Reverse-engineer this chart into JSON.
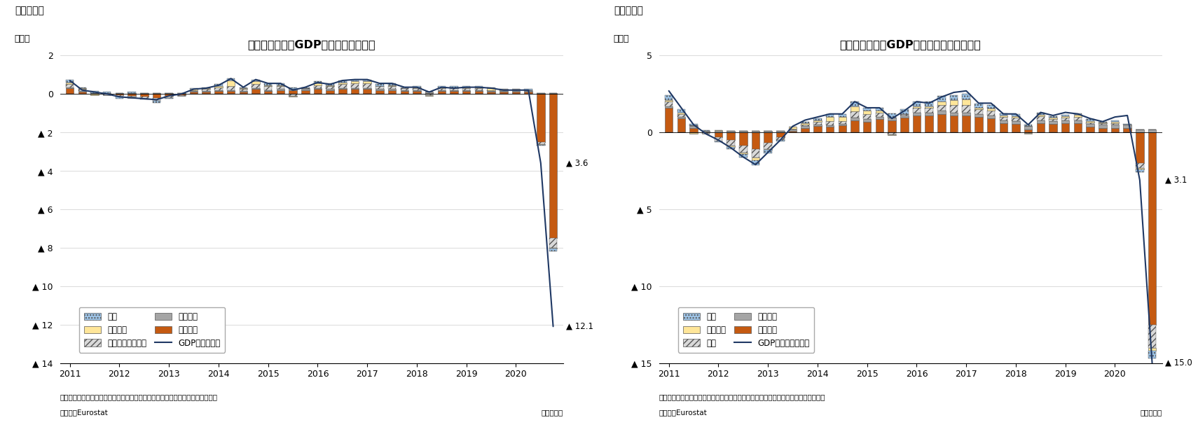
{
  "chart1": {
    "title": "ユーロ圈の実質GDP成長率（前期比）",
    "fig_label": "（図表１）",
    "ylabel": "（％）",
    "ylim": [
      -14,
      2
    ],
    "yticks": [
      2,
      0,
      -2,
      -4,
      -6,
      -8,
      -10,
      -12,
      -14
    ],
    "ytick_labels": [
      "2",
      "0",
      "▲ 2",
      "▲ 4",
      "▲ 6",
      "▲ 8",
      "▲ 10",
      "▲ 12",
      "▲ 14"
    ],
    "note": "（注）季節調整値、寄与度は前期比伸び率に対する寄与度で最新期のデータなし",
    "source": "（資料）Eurostat",
    "quarter_label": "（四半期）",
    "gdp_label_val": -3.6,
    "gdp_label_text": "▲ 3.6",
    "min_label_val": -12.1,
    "min_label_text": "▲ 12.1",
    "legend_labels": [
      "外需",
      "在庫変動",
      "投資（在庫除く）",
      "政府消費",
      "個人消費",
      "GDP（前期比）"
    ]
  },
  "chart2": {
    "title": "ユーロ圈の実質GDP成長率（前年同期比）",
    "fig_label": "（図表２）",
    "ylabel": "（％）",
    "ylim": [
      -15,
      5
    ],
    "yticks": [
      5,
      0,
      -5,
      -10,
      -15
    ],
    "ytick_labels": [
      "5",
      "0",
      "▲ 5",
      "▲ 10",
      "▲ 15"
    ],
    "note": "（注）季節調整値、寄与度は前年同期比伸び率に対する寄与度で最新期のデータなし",
    "source": "（資料）Eurostat",
    "quarter_label": "（四半期）",
    "gdp_label_val": -3.1,
    "gdp_label_text": "▲ 3.1",
    "min_label_val": -15.0,
    "min_label_text": "▲ 15.0",
    "legend_labels": [
      "外需",
      "在庫変動",
      "投資",
      "政府消費",
      "個人消費",
      "GDP（前年同期比）"
    ]
  },
  "colors": {
    "gaijyu": "#9dc3e6",
    "zaiko": "#ffe699",
    "toshi": "#d9d9d9",
    "seifu": "#a5a5a5",
    "kojin": "#c55a11",
    "gdp_line": "#1f3864"
  },
  "bar_width": 0.65,
  "chart1_data": {
    "gaijyu": [
      0.15,
      0.05,
      0.1,
      0.05,
      -0.1,
      0.05,
      -0.05,
      -0.1,
      -0.05,
      0.0,
      0.05,
      0.05,
      0.1,
      0.1,
      0.05,
      0.1,
      0.1,
      0.1,
      0.1,
      0.05,
      0.1,
      0.1,
      0.1,
      0.1,
      0.1,
      0.1,
      0.1,
      0.05,
      0.05,
      0.0,
      0.05,
      0.05,
      0.05,
      0.05,
      0.05,
      0.0,
      0.0,
      0.05,
      -0.05,
      -0.15
    ],
    "zaiko": [
      0.1,
      0.05,
      -0.05,
      0.0,
      0.0,
      -0.05,
      0.0,
      0.0,
      0.0,
      0.0,
      0.05,
      0.05,
      0.05,
      0.3,
      0.05,
      0.15,
      0.05,
      0.05,
      -0.05,
      0.0,
      0.1,
      0.05,
      0.1,
      0.1,
      0.1,
      0.0,
      0.05,
      0.0,
      0.05,
      -0.05,
      0.05,
      0.05,
      0.05,
      0.05,
      0.1,
      0.05,
      0.05,
      0.0,
      -0.05,
      -0.05
    ],
    "toshi": [
      0.15,
      0.1,
      0.0,
      -0.05,
      -0.1,
      -0.05,
      -0.1,
      -0.15,
      -0.1,
      -0.05,
      0.05,
      0.1,
      0.15,
      0.2,
      0.1,
      0.2,
      0.2,
      0.15,
      -0.1,
      0.05,
      0.15,
      0.15,
      0.2,
      0.25,
      0.25,
      0.15,
      0.15,
      0.1,
      0.1,
      -0.05,
      0.1,
      0.1,
      0.1,
      0.1,
      0.05,
      0.05,
      0.05,
      0.05,
      -0.1,
      -0.5
    ],
    "seifu": [
      0.05,
      0.05,
      0.05,
      0.05,
      0.05,
      0.05,
      0.05,
      0.05,
      0.05,
      0.05,
      0.05,
      0.05,
      0.05,
      0.05,
      0.05,
      0.05,
      0.05,
      0.05,
      0.05,
      0.05,
      0.05,
      0.05,
      0.05,
      0.05,
      0.05,
      0.05,
      0.05,
      0.05,
      0.05,
      0.05,
      0.05,
      0.05,
      0.05,
      0.05,
      0.05,
      0.05,
      0.05,
      0.05,
      0.05,
      0.05
    ],
    "kojin": [
      0.3,
      0.1,
      0.0,
      0.0,
      -0.05,
      -0.1,
      -0.15,
      -0.2,
      -0.1,
      -0.05,
      0.1,
      0.1,
      0.15,
      0.15,
      0.1,
      0.25,
      0.15,
      0.2,
      0.2,
      0.2,
      0.25,
      0.2,
      0.25,
      0.25,
      0.25,
      0.2,
      0.2,
      0.15,
      0.15,
      0.05,
      0.15,
      0.15,
      0.15,
      0.15,
      0.1,
      0.1,
      0.1,
      0.1,
      -2.5,
      -7.5
    ],
    "gdp_line": [
      0.7,
      0.2,
      0.1,
      0.0,
      -0.15,
      -0.2,
      -0.25,
      -0.3,
      -0.1,
      0.0,
      0.25,
      0.3,
      0.45,
      0.8,
      0.35,
      0.75,
      0.55,
      0.55,
      0.2,
      0.35,
      0.6,
      0.5,
      0.7,
      0.75,
      0.75,
      0.55,
      0.55,
      0.35,
      0.35,
      0.1,
      0.35,
      0.3,
      0.35,
      0.35,
      0.3,
      0.2,
      0.2,
      0.2,
      -3.6,
      -12.1
    ]
  },
  "chart2_data": {
    "gaijyu": [
      0.3,
      0.2,
      0.1,
      0.05,
      -0.05,
      -0.15,
      -0.25,
      -0.35,
      -0.2,
      -0.1,
      0.0,
      0.1,
      0.1,
      0.2,
      0.2,
      0.3,
      0.2,
      0.2,
      0.3,
      0.3,
      0.3,
      0.3,
      0.35,
      0.3,
      0.35,
      0.25,
      0.25,
      0.15,
      0.15,
      0.1,
      0.15,
      0.1,
      0.1,
      0.1,
      0.1,
      0.05,
      0.1,
      0.05,
      -0.2,
      -0.5
    ],
    "zaiko": [
      0.1,
      0.1,
      -0.1,
      0.0,
      0.05,
      -0.1,
      -0.1,
      -0.15,
      -0.05,
      0.0,
      0.1,
      0.1,
      0.1,
      0.25,
      0.25,
      0.35,
      0.2,
      0.1,
      -0.05,
      0.0,
      0.1,
      0.1,
      0.2,
      0.3,
      0.35,
      0.1,
      0.15,
      0.1,
      0.1,
      -0.05,
      0.1,
      0.1,
      0.1,
      0.15,
      0.1,
      0.05,
      0.1,
      0.0,
      -0.1,
      -0.2
    ],
    "toshi": [
      0.3,
      0.2,
      0.05,
      -0.1,
      -0.3,
      -0.35,
      -0.45,
      -0.55,
      -0.4,
      -0.2,
      0.05,
      0.1,
      0.2,
      0.3,
      0.2,
      0.4,
      0.35,
      0.3,
      -0.15,
      0.1,
      0.3,
      0.3,
      0.4,
      0.5,
      0.5,
      0.3,
      0.3,
      0.2,
      0.2,
      -0.05,
      0.25,
      0.1,
      0.15,
      0.2,
      0.1,
      0.1,
      0.1,
      0.0,
      -0.3,
      -1.5
    ],
    "seifu": [
      0.1,
      0.1,
      0.1,
      0.1,
      0.1,
      0.1,
      0.1,
      0.1,
      0.1,
      0.1,
      0.1,
      0.1,
      0.1,
      0.1,
      0.1,
      0.15,
      0.15,
      0.15,
      0.15,
      0.15,
      0.2,
      0.2,
      0.2,
      0.2,
      0.2,
      0.2,
      0.2,
      0.2,
      0.2,
      0.2,
      0.2,
      0.2,
      0.2,
      0.2,
      0.2,
      0.2,
      0.2,
      0.2,
      0.2,
      0.2
    ],
    "kojin": [
      1.6,
      0.9,
      0.3,
      0.0,
      -0.3,
      -0.5,
      -0.85,
      -1.1,
      -0.7,
      -0.3,
      0.1,
      0.3,
      0.4,
      0.35,
      0.45,
      0.8,
      0.7,
      0.85,
      0.8,
      0.95,
      1.1,
      1.1,
      1.2,
      1.1,
      1.1,
      1.0,
      0.9,
      0.6,
      0.55,
      0.2,
      0.6,
      0.55,
      0.6,
      0.6,
      0.35,
      0.3,
      0.3,
      0.3,
      -2.0,
      -12.5
    ],
    "gdp_line": [
      2.7,
      1.6,
      0.5,
      -0.1,
      -0.5,
      -1.0,
      -1.6,
      -2.1,
      -1.3,
      -0.5,
      0.4,
      0.8,
      1.0,
      1.2,
      1.2,
      2.0,
      1.6,
      1.6,
      0.9,
      1.4,
      2.0,
      1.9,
      2.3,
      2.6,
      2.7,
      1.9,
      1.9,
      1.2,
      1.2,
      0.5,
      1.3,
      1.1,
      1.3,
      1.2,
      0.9,
      0.7,
      1.0,
      1.1,
      -3.1,
      -15.0
    ]
  }
}
